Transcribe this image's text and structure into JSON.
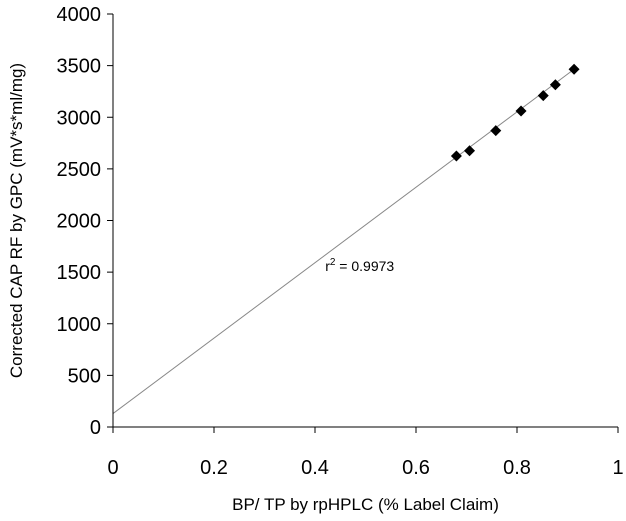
{
  "chart_data": {
    "type": "scatter",
    "xlabel": "BP/ TP by rpHPLC (% Label Claim)",
    "ylabel": "Corrected CAP RF by GPC (mV*s*ml/mg)",
    "xlim": [
      0,
      1
    ],
    "ylim": [
      0,
      4000
    ],
    "x_ticks": [
      "0",
      "0.2",
      "0.4",
      "0.6",
      "0.8",
      "1"
    ],
    "y_ticks": [
      "0",
      "500",
      "1000",
      "1500",
      "2000",
      "2500",
      "3000",
      "3500",
      "4000"
    ],
    "x_tick_values": [
      0,
      0.2,
      0.4,
      0.6,
      0.8,
      1
    ],
    "y_tick_values": [
      0,
      500,
      1000,
      1500,
      2000,
      2500,
      3000,
      3500,
      4000
    ],
    "grid": false,
    "legend": "none",
    "series": [
      {
        "marker": "diamond",
        "color": "#000000",
        "points": [
          {
            "x": 0.68,
            "y": 2625
          },
          {
            "x": 0.706,
            "y": 2675
          },
          {
            "x": 0.758,
            "y": 2870
          },
          {
            "x": 0.808,
            "y": 3060
          },
          {
            "x": 0.852,
            "y": 3210
          },
          {
            "x": 0.876,
            "y": 3315
          },
          {
            "x": 0.913,
            "y": 3465
          }
        ]
      }
    ],
    "trendline": {
      "color": "#888888",
      "from": {
        "x": 0,
        "y": 130
      },
      "to": {
        "x": 0.913,
        "y": 3465
      }
    },
    "annotation": {
      "r_symbol": "r",
      "superscript": "2",
      "value_text": " = 0.9973",
      "position": {
        "x": 0.44,
        "y": 1560
      }
    }
  }
}
